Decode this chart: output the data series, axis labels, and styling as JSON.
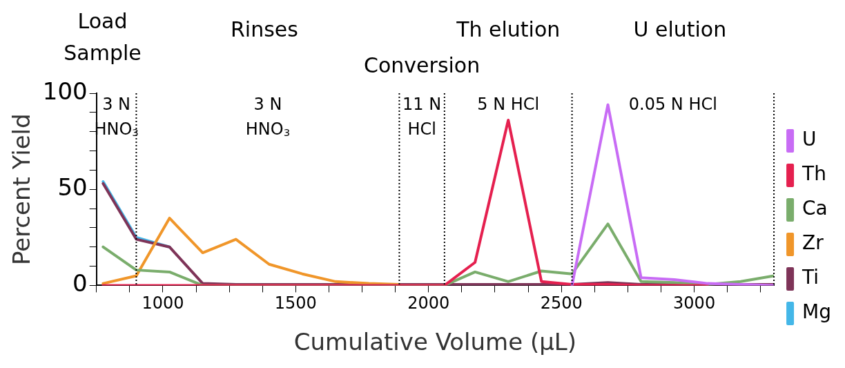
{
  "chart_data": {
    "type": "line",
    "xlabel": "Cumulative Volume (µL)",
    "ylabel": "Percent Yield",
    "x": [
      775,
      900,
      1025,
      1150,
      1275,
      1400,
      1525,
      1650,
      1775,
      1890,
      2000,
      2060,
      2175,
      2300,
      2425,
      2540,
      2675,
      2800,
      2925,
      3050,
      3175,
      3300
    ],
    "xlim": [
      750,
      3300
    ],
    "xticks": [
      {
        "value": 750,
        "label": null
      },
      {
        "value": 875,
        "label": null
      },
      1000,
      {
        "value": 1125,
        "label": null
      },
      {
        "value": 1250,
        "label": null
      },
      {
        "value": 1375,
        "label": null
      },
      1500,
      {
        "value": 1625,
        "label": null
      },
      {
        "value": 1750,
        "label": null
      },
      {
        "value": 1875,
        "label": null
      },
      2000,
      {
        "value": 2125,
        "label": null
      },
      {
        "value": 2250,
        "label": null
      },
      {
        "value": 2375,
        "label": null
      },
      2500,
      {
        "value": 2625,
        "label": null
      },
      {
        "value": 2750,
        "label": null
      },
      {
        "value": 2875,
        "label": null
      },
      3000,
      {
        "value": 3125,
        "label": null
      },
      {
        "value": 3250,
        "label": null
      }
    ],
    "ylim": [
      0,
      100
    ],
    "yticks": [
      0,
      {
        "value": 10,
        "label": null
      },
      {
        "value": 20,
        "label": null
      },
      {
        "value": 30,
        "label": null
      },
      {
        "value": 40,
        "label": null
      },
      50,
      {
        "value": 60,
        "label": null
      },
      {
        "value": 70,
        "label": null
      },
      {
        "value": 80,
        "label": null
      },
      {
        "value": 90,
        "label": null
      },
      100
    ],
    "grid": false,
    "legend": "right",
    "marker": "none",
    "line_style": "solid",
    "series": [
      {
        "name": "U",
        "color": "#c86cf5",
        "values": [
          null,
          null,
          null,
          null,
          null,
          null,
          null,
          null,
          null,
          null,
          null,
          null,
          null,
          null,
          null,
          0,
          94,
          4,
          3,
          1,
          0.5,
          0
        ]
      },
      {
        "name": "Th",
        "color": "#e5204f",
        "values": [
          0,
          0,
          0,
          0,
          0,
          0,
          0,
          0,
          0,
          0,
          0,
          0,
          12,
          86,
          2,
          0.5,
          0.5,
          0,
          0,
          0,
          null,
          null
        ]
      },
      {
        "name": "Ca",
        "color": "#7aad6c",
        "values": [
          20,
          8,
          7,
          0,
          0,
          0,
          0,
          0,
          0,
          0,
          0,
          0,
          7,
          2,
          7.5,
          6,
          32,
          2,
          1.5,
          0.5,
          2,
          5
        ]
      },
      {
        "name": "Zr",
        "color": "#f0962a",
        "values": [
          1,
          5,
          35,
          17,
          24,
          11,
          6,
          2,
          1,
          0.5,
          null,
          null,
          null,
          null,
          null,
          null,
          null,
          null,
          null,
          null,
          null,
          null
        ]
      },
      {
        "name": "Ti",
        "color": "#7e3458",
        "values": [
          53,
          24,
          20,
          1,
          0.5,
          0.5,
          0.5,
          0.5,
          0.5,
          0.5,
          0.5,
          0.5,
          0.5,
          0.5,
          0.5,
          0.5,
          1.5,
          0.5,
          0.5,
          0.5,
          0.5,
          0.5
        ]
      },
      {
        "name": "Mg",
        "color": "#44b7e8",
        "values": [
          54,
          25,
          20,
          null,
          null,
          null,
          null,
          null,
          null,
          null,
          null,
          null,
          null,
          null,
          null,
          null,
          null,
          null,
          null,
          null,
          null,
          null
        ]
      }
    ],
    "ref_lines": [
      {
        "axis": "x",
        "value": 900,
        "line_style": "dotted",
        "color": "#000000"
      },
      {
        "axis": "x",
        "value": 1890,
        "line_style": "dotted",
        "color": "#000000"
      },
      {
        "axis": "x",
        "value": 2060,
        "line_style": "dotted",
        "color": "#000000"
      },
      {
        "axis": "x",
        "value": 2540,
        "line_style": "dotted",
        "color": "#000000"
      },
      {
        "axis": "x",
        "value": 3300,
        "line_style": "dotted",
        "color": "#000000"
      }
    ],
    "annotations": [
      "3 N\nHNO$_{3}$",
      "3 N\nHNO$_{3}$",
      "11 N\nHCl",
      "5 N HCl",
      "0.05 N HCl",
      "Load\nSample",
      "Rinses",
      "Conversion",
      "Th elution",
      "U elution"
    ]
  }
}
